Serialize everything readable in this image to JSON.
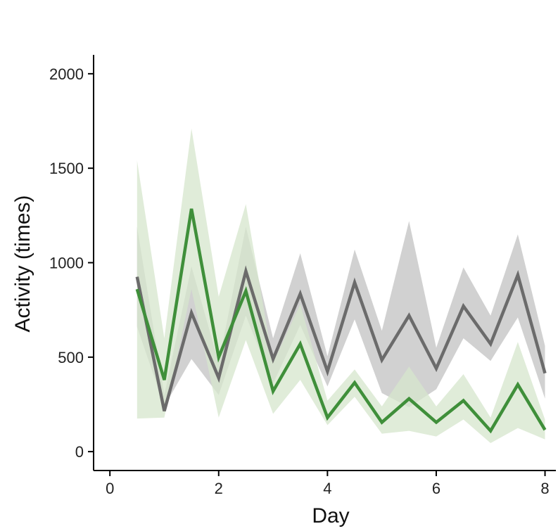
{
  "chart_data": {
    "type": "line",
    "title": "",
    "xlabel": "Day",
    "ylabel": "Activity (times)",
    "xlim": [
      -0.3,
      8.2
    ],
    "ylim": [
      -100,
      2100
    ],
    "xticks": [
      0,
      2,
      4,
      6,
      8
    ],
    "yticks": [
      0,
      500,
      1000,
      1500,
      2000
    ],
    "grid": false,
    "legend": "none",
    "x": [
      0.5,
      1,
      1.5,
      2,
      2.5,
      3,
      3.5,
      4,
      4.5,
      5,
      5.5,
      6,
      6.5,
      7,
      7.5,
      8
    ],
    "series": [
      {
        "color": "#6b6b6b",
        "band_color": "#c9c9c9",
        "values": [
          925,
          215,
          735,
          390,
          955,
          490,
          835,
          425,
          895,
          485,
          720,
          440,
          770,
          570,
          935,
          415
        ],
        "lower": [
          660,
          240,
          490,
          300,
          720,
          360,
          670,
          345,
          700,
          310,
          235,
          330,
          600,
          480,
          710,
          280
        ],
        "upper": [
          1190,
          300,
          980,
          470,
          1190,
          600,
          1050,
          505,
          1070,
          640,
          1220,
          550,
          975,
          720,
          1150,
          560
        ]
      },
      {
        "color": "#3f8f3a",
        "band_color": "#d6e6cc",
        "values": [
          860,
          380,
          1285,
          500,
          850,
          320,
          570,
          180,
          365,
          155,
          280,
          155,
          270,
          110,
          355,
          115
        ],
        "lower": [
          175,
          180,
          860,
          180,
          590,
          200,
          380,
          140,
          290,
          95,
          110,
          80,
          170,
          45,
          125,
          65
        ],
        "upper": [
          1540,
          600,
          1710,
          820,
          1310,
          470,
          780,
          270,
          435,
          240,
          450,
          240,
          410,
          180,
          580,
          170
        ]
      }
    ]
  }
}
